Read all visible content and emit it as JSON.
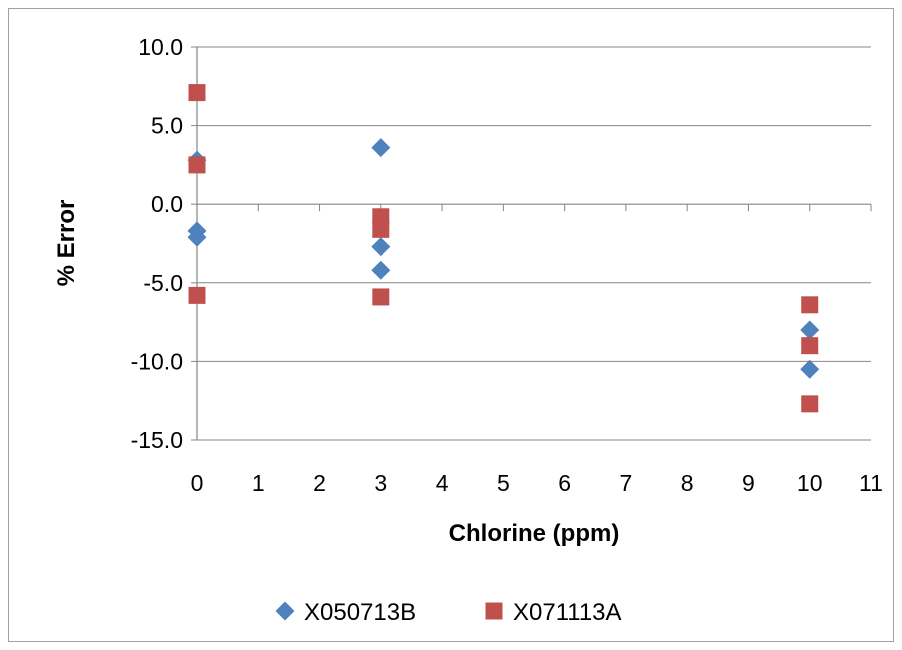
{
  "chart_data": {
    "type": "scatter",
    "title": "",
    "xlabel": "Chlorine (ppm)",
    "ylabel": "% Error",
    "xlim": [
      0,
      11
    ],
    "ylim": [
      -15,
      10
    ],
    "x_ticks": [
      0,
      1,
      2,
      3,
      4,
      5,
      6,
      7,
      8,
      9,
      10,
      11
    ],
    "y_ticks": [
      10,
      5,
      0,
      -5,
      -10,
      -15
    ],
    "x_tick_labels": [
      "0",
      "1",
      "2",
      "3",
      "4",
      "5",
      "6",
      "7",
      "8",
      "9",
      "10",
      "11"
    ],
    "y_tick_labels": [
      "10.0",
      "5.0",
      "0.0",
      "-5.0",
      "-10.0",
      "-15.0"
    ],
    "grid": "horizontal",
    "legend_position": "bottom",
    "series": [
      {
        "name": "X050713B",
        "marker": "diamond",
        "color": "#4F81BD",
        "points": [
          [
            0,
            2.8
          ],
          [
            0,
            -1.7
          ],
          [
            0,
            -2.1
          ],
          [
            3,
            3.6
          ],
          [
            3,
            -2.7
          ],
          [
            3,
            -4.2
          ],
          [
            10,
            -8.0
          ],
          [
            10,
            -10.5
          ]
        ]
      },
      {
        "name": "X071113A",
        "marker": "square",
        "color": "#C0504D",
        "points": [
          [
            0,
            7.1
          ],
          [
            0,
            2.5
          ],
          [
            0,
            -5.8
          ],
          [
            3,
            -0.8
          ],
          [
            3,
            -1.6
          ],
          [
            3,
            -5.9
          ],
          [
            10,
            -6.4
          ],
          [
            10,
            -9.0
          ],
          [
            10,
            -12.7
          ]
        ]
      }
    ]
  }
}
